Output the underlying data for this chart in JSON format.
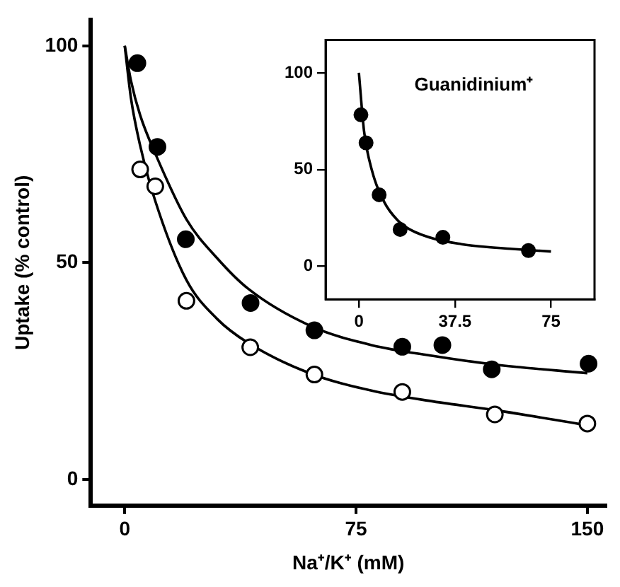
{
  "chart_data": [
    {
      "type": "scatter",
      "xlabel": "Na⁺/K⁺ (mM)",
      "ylabel": "Uptake (% control)",
      "xlim": [
        -11,
        156
      ],
      "ylim": [
        -6,
        106
      ],
      "xticks": [
        0,
        75,
        150
      ],
      "yticks": [
        0,
        50,
        100
      ],
      "series": [
        {
          "marker": "circle",
          "color": "#000000",
          "x": [
            4.1,
            10.6,
            19.8,
            40.8,
            61.5,
            90,
            103,
            119,
            150.4
          ],
          "values": [
            96,
            76.7,
            55.4,
            40.7,
            34.4,
            30.6,
            31,
            25.4,
            26.7
          ]
        },
        {
          "marker": "circle",
          "color": "#ffffff",
          "x": [
            5,
            9.9,
            20,
            40.7,
            61.5,
            90,
            120,
            150
          ],
          "values": [
            71.5,
            67.6,
            41.2,
            30.5,
            24.2,
            20.2,
            15,
            12.9
          ]
        },
        {
          "type": "line",
          "marker": "none",
          "color": "#000000",
          "x": [
            0,
            2,
            5,
            10,
            20,
            30,
            40,
            60,
            80,
            100,
            120,
            150
          ],
          "values": [
            100,
            92,
            84,
            75,
            60,
            51,
            44,
            35.5,
            31,
            28.5,
            26.5,
            24.5
          ]
        },
        {
          "type": "line",
          "marker": "none",
          "color": "#000000",
          "x": [
            0,
            2,
            5,
            10,
            20,
            30,
            40,
            60,
            80,
            100,
            120,
            150
          ],
          "values": [
            100,
            88,
            77,
            64,
            46,
            37,
            31.5,
            24.5,
            20.5,
            18,
            16,
            12.5
          ]
        }
      ]
    },
    {
      "type": "scatter",
      "annotations": [
        "Guanidinium⁺"
      ],
      "xlim": [
        -13,
        92
      ],
      "ylim": [
        -17,
        117
      ],
      "xticks": [
        0,
        37.5,
        75
      ],
      "yticks": [
        0,
        50,
        100
      ],
      "series": [
        {
          "marker": "circle",
          "color": "#000000",
          "x": [
            0.8,
            2.8,
            7.9,
            16.1,
            32.8,
            66.2
          ],
          "values": [
            78.3,
            63.8,
            37,
            19.1,
            15,
            8.2
          ]
        },
        {
          "type": "line",
          "marker": "none",
          "color": "#000000",
          "x": [
            0,
            2,
            5,
            10,
            15,
            20,
            30,
            40,
            50,
            60,
            75
          ],
          "values": [
            100,
            70,
            50,
            33,
            24,
            19,
            14,
            11.5,
            10,
            9,
            7.7
          ]
        }
      ]
    }
  ]
}
